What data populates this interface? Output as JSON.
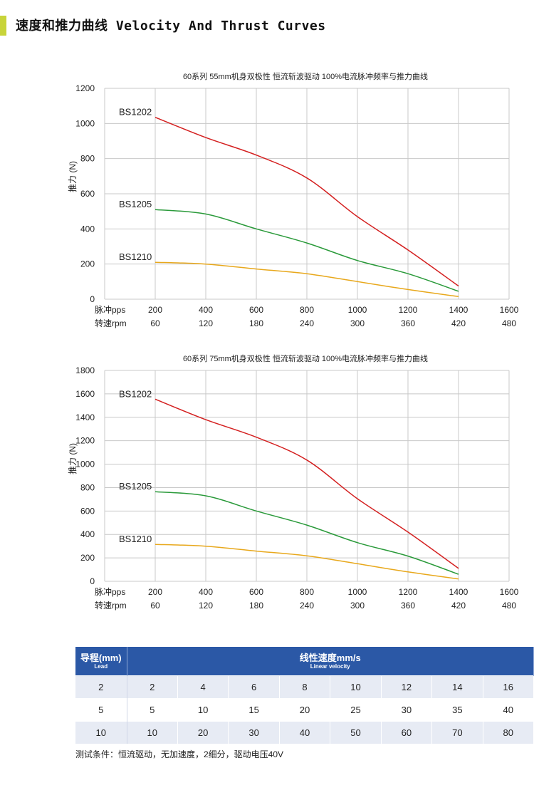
{
  "header": {
    "title": "速度和推力曲线 Velocity And Thrust Curves",
    "accent_color": "#c8d43a"
  },
  "chart_data": [
    {
      "type": "line",
      "title": "60系列 55mm机身双极性 恒流斩波驱动 100%电流脉冲频率与推力曲线",
      "ylabel": "推力 (N)",
      "ylim": [
        0,
        1200
      ],
      "yticks": [
        "0",
        "200",
        "400",
        "600",
        "800",
        "1000",
        "1200"
      ],
      "xlim": [
        0,
        1600
      ],
      "xlabel_row1": "脉冲pps",
      "xlabel_row2": "转速rpm",
      "xticks_pps": [
        "200",
        "400",
        "600",
        "800",
        "1000",
        "1200",
        "1400",
        "1600"
      ],
      "xticks_rpm": [
        "60",
        "120",
        "180",
        "240",
        "300",
        "360",
        "420",
        "480"
      ],
      "grid": true,
      "series": [
        {
          "name": "BS1202",
          "color": "#d42020",
          "x": [
            200,
            400,
            600,
            800,
            1000,
            1200,
            1400
          ],
          "values": [
            1035,
            920,
            820,
            690,
            470,
            280,
            75
          ]
        },
        {
          "name": "BS1205",
          "color": "#2a9a3a",
          "x": [
            200,
            400,
            600,
            800,
            1000,
            1200,
            1400
          ],
          "values": [
            510,
            485,
            400,
            320,
            220,
            145,
            45
          ]
        },
        {
          "name": "BS1210",
          "color": "#e8a81c",
          "x": [
            200,
            400,
            600,
            800,
            1000,
            1200,
            1400
          ],
          "values": [
            210,
            200,
            172,
            145,
            100,
            55,
            15
          ]
        }
      ]
    },
    {
      "type": "line",
      "title": "60系列 75mm机身双极性 恒流斩波驱动 100%电流脉冲频率与推力曲线",
      "ylabel": "推力 (N)",
      "ylim": [
        0,
        1800
      ],
      "yticks": [
        "0",
        "200",
        "400",
        "600",
        "800",
        "1000",
        "1200",
        "1400",
        "1600",
        "1800"
      ],
      "xlim": [
        0,
        1600
      ],
      "xlabel_row1": "脉冲pps",
      "xlabel_row2": "转速rpm",
      "xticks_pps": [
        "200",
        "400",
        "600",
        "800",
        "1000",
        "1200",
        "1400",
        "1600"
      ],
      "xticks_rpm": [
        "60",
        "120",
        "180",
        "240",
        "300",
        "360",
        "420",
        "480"
      ],
      "grid": true,
      "series": [
        {
          "name": "BS1202",
          "color": "#d42020",
          "x": [
            200,
            400,
            600,
            800,
            1000,
            1200,
            1400
          ],
          "values": [
            1555,
            1380,
            1230,
            1035,
            705,
            420,
            110
          ]
        },
        {
          "name": "BS1205",
          "color": "#2a9a3a",
          "x": [
            200,
            400,
            600,
            800,
            1000,
            1200,
            1400
          ],
          "values": [
            765,
            730,
            600,
            480,
            330,
            215,
            60
          ]
        },
        {
          "name": "BS1210",
          "color": "#e8a81c",
          "x": [
            200,
            400,
            600,
            800,
            1000,
            1200,
            1400
          ],
          "values": [
            315,
            300,
            258,
            218,
            150,
            80,
            20
          ]
        }
      ]
    }
  ],
  "table": {
    "lead_header": "导程(mm)",
    "lead_header_en": "Lead",
    "velocity_header": "线性速度mm/s",
    "velocity_header_en": "Linear velocity",
    "rows": [
      {
        "lead": "2",
        "values": [
          "2",
          "4",
          "6",
          "8",
          "10",
          "12",
          "14",
          "16"
        ]
      },
      {
        "lead": "5",
        "values": [
          "5",
          "10",
          "15",
          "20",
          "25",
          "30",
          "35",
          "40"
        ]
      },
      {
        "lead": "10",
        "values": [
          "10",
          "20",
          "30",
          "40",
          "50",
          "60",
          "70",
          "80"
        ]
      }
    ],
    "header_color": "#2b58a6",
    "stripe_color": "#e7ebf4"
  },
  "note": "测试条件：恒流驱动，无加速度，2细分，驱动电压40V"
}
